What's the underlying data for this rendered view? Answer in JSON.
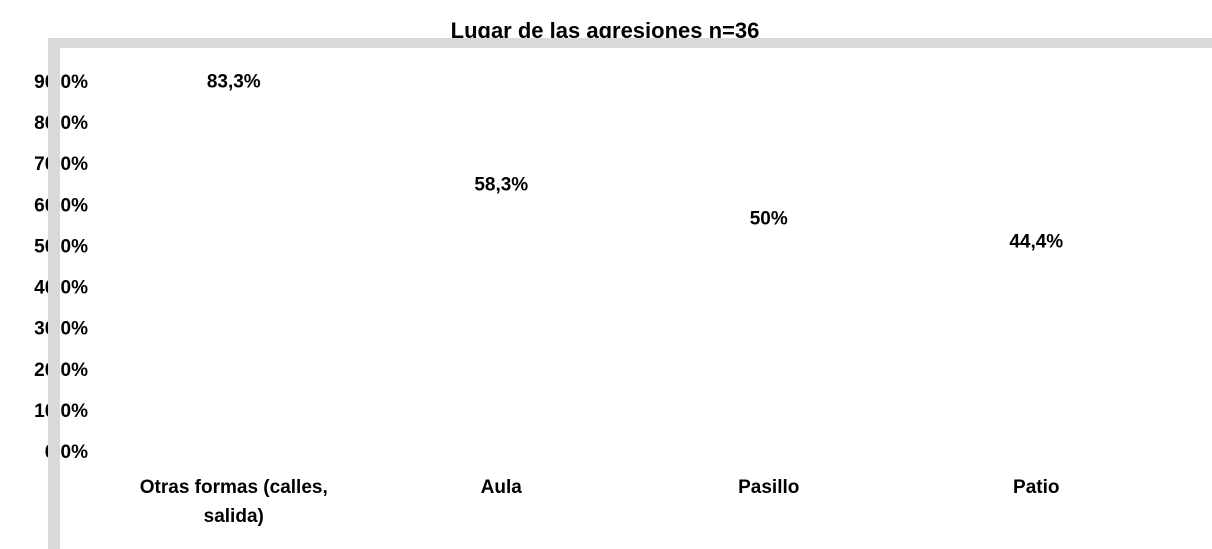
{
  "chart_data": {
    "type": "bar",
    "title": "Lugar de las agresiones n=36",
    "categories": [
      "Otras formas (calles, salida)",
      "Aula",
      "Pasillo",
      "Patio"
    ],
    "values": [
      83.3,
      58.3,
      50,
      44.4
    ],
    "value_labels": [
      "83,3%",
      "58,3%",
      "50%",
      "44,4%"
    ],
    "ylim": [
      0,
      90
    ],
    "yticks": [
      {
        "value": 0,
        "label": "0,0%"
      },
      {
        "value": 10,
        "label": "10,0%"
      },
      {
        "value": 20,
        "label": "20,0%"
      },
      {
        "value": 30,
        "label": "30,0%"
      },
      {
        "value": 40,
        "label": "40,0%"
      },
      {
        "value": 50,
        "label": "50,0%"
      },
      {
        "value": 60,
        "label": "60,0%"
      },
      {
        "value": 70,
        "label": "70,0%"
      },
      {
        "value": 80,
        "label": "80,0%"
      },
      {
        "value": 90,
        "label": "90,0%"
      }
    ]
  }
}
